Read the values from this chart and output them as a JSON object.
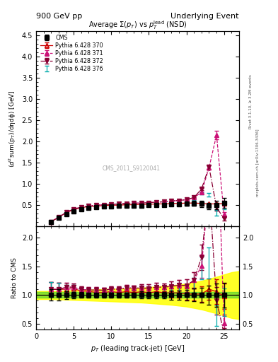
{
  "title_left": "900 GeV pp",
  "title_right": "Underlying Event",
  "plot_title": "Average $\\Sigma(p_T)$ vs $p_T^{\\rm lead}$ (NSD)",
  "ylabel_main": "$\\langle d^2 \\rm{sum}(p_T)/d\\eta d\\phi \\rangle$ [GeV]",
  "ylabel_ratio": "Ratio to CMS",
  "xlabel": "$p_T$ (leading track-jet) [GeV]",
  "watermark": "CMS_2011_S9120041",
  "right_label_top": "Rivet 3.1.10, ≥ 3.2M events",
  "right_label_bot": "mcplots.cern.ch [arXiv:1306.3436]",
  "cms_x": [
    2.0,
    3.0,
    4.0,
    5.0,
    6.0,
    7.0,
    8.0,
    9.0,
    10.0,
    11.0,
    12.0,
    13.0,
    14.0,
    15.0,
    16.0,
    17.0,
    18.0,
    19.0,
    20.0,
    21.0,
    22.0,
    23.0,
    24.0,
    25.0
  ],
  "cms_y": [
    0.1,
    0.2,
    0.29,
    0.36,
    0.41,
    0.44,
    0.46,
    0.47,
    0.47,
    0.48,
    0.48,
    0.49,
    0.49,
    0.5,
    0.5,
    0.51,
    0.52,
    0.52,
    0.54,
    0.54,
    0.53,
    0.48,
    0.5,
    0.55
  ],
  "cms_yerr": [
    0.01,
    0.02,
    0.02,
    0.02,
    0.02,
    0.02,
    0.02,
    0.02,
    0.02,
    0.02,
    0.02,
    0.02,
    0.03,
    0.03,
    0.03,
    0.03,
    0.04,
    0.04,
    0.05,
    0.06,
    0.07,
    0.08,
    0.1,
    0.12
  ],
  "py370_x": [
    2.0,
    3.0,
    4.0,
    5.0,
    6.0,
    7.0,
    8.0,
    9.0,
    10.0,
    11.0,
    12.0,
    13.0,
    14.0,
    15.0,
    16.0,
    17.0,
    18.0,
    19.0,
    20.0,
    21.0,
    22.0,
    23.0,
    24.0,
    25.0
  ],
  "py370_y": [
    0.11,
    0.22,
    0.32,
    0.4,
    0.44,
    0.47,
    0.48,
    0.49,
    0.5,
    0.5,
    0.51,
    0.51,
    0.52,
    0.52,
    0.53,
    0.53,
    0.54,
    0.54,
    0.55,
    0.55,
    0.54,
    0.53,
    0.53,
    0.54
  ],
  "py370_yerr": [
    0.005,
    0.005,
    0.005,
    0.005,
    0.005,
    0.005,
    0.005,
    0.005,
    0.005,
    0.005,
    0.005,
    0.005,
    0.005,
    0.005,
    0.005,
    0.005,
    0.006,
    0.006,
    0.007,
    0.008,
    0.01,
    0.01,
    0.02,
    0.03
  ],
  "py371_x": [
    2.0,
    3.0,
    4.0,
    5.0,
    6.0,
    7.0,
    8.0,
    9.0,
    10.0,
    11.0,
    12.0,
    13.0,
    14.0,
    15.0,
    16.0,
    17.0,
    18.0,
    19.0,
    20.0,
    21.0,
    22.0,
    23.0,
    24.0,
    25.0
  ],
  "py371_y": [
    0.11,
    0.22,
    0.33,
    0.41,
    0.45,
    0.48,
    0.5,
    0.51,
    0.52,
    0.53,
    0.54,
    0.55,
    0.55,
    0.56,
    0.57,
    0.58,
    0.6,
    0.61,
    0.63,
    0.68,
    0.8,
    1.38,
    2.15,
    0.28
  ],
  "py371_yerr": [
    0.005,
    0.005,
    0.005,
    0.005,
    0.005,
    0.005,
    0.005,
    0.005,
    0.005,
    0.005,
    0.005,
    0.005,
    0.005,
    0.005,
    0.005,
    0.005,
    0.006,
    0.006,
    0.007,
    0.01,
    0.02,
    0.05,
    0.1,
    0.05
  ],
  "py372_x": [
    2.0,
    3.0,
    4.0,
    5.0,
    6.0,
    7.0,
    8.0,
    9.0,
    10.0,
    11.0,
    12.0,
    13.0,
    14.0,
    15.0,
    16.0,
    17.0,
    18.0,
    19.0,
    20.0,
    21.0,
    22.0,
    23.0,
    24.0,
    25.0
  ],
  "py372_y": [
    0.11,
    0.22,
    0.33,
    0.41,
    0.45,
    0.48,
    0.5,
    0.51,
    0.52,
    0.53,
    0.54,
    0.55,
    0.55,
    0.56,
    0.57,
    0.58,
    0.6,
    0.61,
    0.63,
    0.68,
    0.88,
    1.4,
    0.45,
    0.18
  ],
  "py372_yerr": [
    0.005,
    0.005,
    0.005,
    0.005,
    0.005,
    0.005,
    0.005,
    0.005,
    0.005,
    0.005,
    0.005,
    0.005,
    0.005,
    0.005,
    0.005,
    0.005,
    0.006,
    0.006,
    0.007,
    0.01,
    0.02,
    0.05,
    0.08,
    0.04
  ],
  "py376_x": [
    2.0,
    3.0,
    4.0,
    5.0,
    6.0,
    7.0,
    8.0,
    9.0,
    10.0,
    11.0,
    12.0,
    13.0,
    14.0,
    15.0,
    16.0,
    17.0,
    18.0,
    19.0,
    20.0,
    21.0,
    22.0,
    23.0,
    24.0,
    25.0
  ],
  "py376_y": [
    0.11,
    0.22,
    0.32,
    0.4,
    0.44,
    0.47,
    0.48,
    0.49,
    0.5,
    0.51,
    0.52,
    0.52,
    0.53,
    0.54,
    0.55,
    0.56,
    0.57,
    0.58,
    0.59,
    0.63,
    0.78,
    0.75,
    0.32,
    0.48
  ],
  "py376_yerr": [
    0.005,
    0.005,
    0.005,
    0.005,
    0.005,
    0.005,
    0.005,
    0.005,
    0.005,
    0.005,
    0.005,
    0.005,
    0.005,
    0.005,
    0.005,
    0.005,
    0.006,
    0.006,
    0.007,
    0.01,
    0.02,
    0.04,
    0.06,
    0.08
  ],
  "color_370": "#cc0000",
  "color_371": "#cc1177",
  "color_372": "#880033",
  "color_376": "#00aaaa",
  "xlim": [
    0,
    27
  ],
  "ylim_main": [
    0,
    4.6
  ],
  "ylim_ratio": [
    0.4,
    2.2
  ],
  "yticks_main": [
    0.5,
    1.0,
    1.5,
    2.0,
    2.5,
    3.0,
    3.5,
    4.0,
    4.5
  ],
  "yticks_ratio": [
    0.5,
    1.0,
    1.5,
    2.0
  ],
  "green_band_lo": 0.95,
  "green_band_hi": 1.05,
  "yellow_band_x": [
    0.0,
    2.0,
    4.0,
    6.0,
    8.0,
    10.0,
    12.0,
    14.0,
    16.0,
    18.0,
    20.0,
    22.0,
    24.0,
    26.0,
    27.0
  ],
  "yellow_band_lo": [
    0.93,
    0.93,
    0.92,
    0.91,
    0.9,
    0.89,
    0.88,
    0.87,
    0.85,
    0.83,
    0.8,
    0.75,
    0.68,
    0.6,
    0.58
  ],
  "yellow_band_hi": [
    1.07,
    1.07,
    1.08,
    1.09,
    1.1,
    1.11,
    1.12,
    1.13,
    1.15,
    1.17,
    1.2,
    1.25,
    1.32,
    1.4,
    1.42
  ]
}
